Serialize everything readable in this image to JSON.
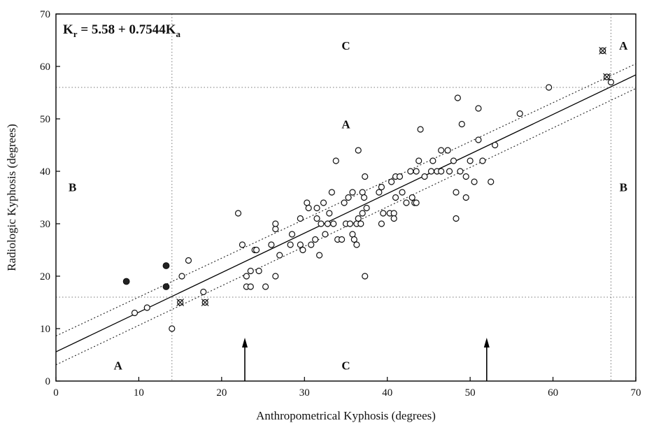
{
  "chart_data": {
    "type": "scatter",
    "xlabel": "Anthropometrical Kyphosis (degrees)",
    "ylabel": "Radiologic Kyphosis (degrees)",
    "xlim": [
      0,
      70
    ],
    "ylim": [
      0,
      70
    ],
    "xticks": [
      0,
      10,
      20,
      30,
      40,
      50,
      60,
      70
    ],
    "yticks": [
      0,
      10,
      20,
      30,
      40,
      50,
      60,
      70
    ],
    "grid": false,
    "equation": {
      "lhs": "K",
      "lhs_sub": "r",
      "rhs": " = 5.58 + 0.7544K",
      "rhs_sub": "a"
    },
    "regression": {
      "intercept": 5.58,
      "slope": 0.7544
    },
    "confidence_band": {
      "upper": [
        [
          0,
          8.6
        ],
        [
          70,
          60.5
        ]
      ],
      "lower": [
        [
          0,
          3.1
        ],
        [
          70,
          55.8
        ]
      ]
    },
    "reference_lines": {
      "vertical": [
        14,
        67
      ],
      "horizontal": [
        16,
        56
      ]
    },
    "arrows_x": [
      22.8,
      52
    ],
    "region_labels": [
      {
        "text": "C",
        "x": 35,
        "y": 64
      },
      {
        "text": "A",
        "x": 68.5,
        "y": 64
      },
      {
        "text": "A",
        "x": 35,
        "y": 49
      },
      {
        "text": "B",
        "x": 2,
        "y": 37
      },
      {
        "text": "B",
        "x": 68.5,
        "y": 37
      },
      {
        "text": "A",
        "x": 7.5,
        "y": 3
      },
      {
        "text": "C",
        "x": 35,
        "y": 3
      }
    ],
    "series": [
      {
        "marker": "open-circle",
        "points": [
          [
            9.5,
            13
          ],
          [
            11,
            14
          ],
          [
            14,
            10
          ],
          [
            15.2,
            20
          ],
          [
            16,
            23
          ],
          [
            17.8,
            17
          ],
          [
            22,
            32
          ],
          [
            22.5,
            26
          ],
          [
            23,
            20
          ],
          [
            23,
            18
          ],
          [
            23.5,
            21
          ],
          [
            23.5,
            18
          ],
          [
            24,
            25
          ],
          [
            24.2,
            25
          ],
          [
            24.5,
            21
          ],
          [
            25.3,
            18
          ],
          [
            26,
            26
          ],
          [
            26.5,
            20
          ],
          [
            26.5,
            29
          ],
          [
            26.5,
            30
          ],
          [
            27,
            24
          ],
          [
            28.3,
            26
          ],
          [
            28.5,
            28
          ],
          [
            29.5,
            26
          ],
          [
            29.5,
            31
          ],
          [
            29.8,
            25
          ],
          [
            30.3,
            34
          ],
          [
            30.5,
            33
          ],
          [
            30.8,
            26
          ],
          [
            31.3,
            27
          ],
          [
            31.5,
            31
          ],
          [
            31.5,
            33
          ],
          [
            31.8,
            24
          ],
          [
            32,
            30
          ],
          [
            32.3,
            34
          ],
          [
            32.5,
            28
          ],
          [
            32.8,
            30
          ],
          [
            33,
            32
          ],
          [
            33.3,
            36
          ],
          [
            33.5,
            30
          ],
          [
            33.8,
            42
          ],
          [
            34,
            27
          ],
          [
            34.5,
            27
          ],
          [
            34.8,
            34
          ],
          [
            35,
            30
          ],
          [
            35.3,
            35
          ],
          [
            35.5,
            30
          ],
          [
            35.8,
            36
          ],
          [
            35.8,
            28
          ],
          [
            36,
            27
          ],
          [
            36.3,
            30
          ],
          [
            36.3,
            26
          ],
          [
            36.5,
            31
          ],
          [
            36.5,
            44
          ],
          [
            36.8,
            30
          ],
          [
            37,
            36
          ],
          [
            37,
            32
          ],
          [
            37.2,
            35
          ],
          [
            37.3,
            20
          ],
          [
            37.3,
            39
          ],
          [
            37.5,
            33
          ],
          [
            39,
            36
          ],
          [
            39.3,
            37
          ],
          [
            39.3,
            30
          ],
          [
            39.5,
            32
          ],
          [
            40.3,
            32
          ],
          [
            40.5,
            38
          ],
          [
            40.8,
            32
          ],
          [
            40.8,
            31
          ],
          [
            41,
            35
          ],
          [
            41,
            39
          ],
          [
            41.5,
            39
          ],
          [
            41.8,
            36
          ],
          [
            42.3,
            34
          ],
          [
            42.8,
            40
          ],
          [
            43,
            35
          ],
          [
            43.3,
            34
          ],
          [
            43.5,
            40
          ],
          [
            43.5,
            34
          ],
          [
            43.8,
            42
          ],
          [
            44,
            48
          ],
          [
            44.5,
            39
          ],
          [
            45.3,
            40
          ],
          [
            45.5,
            42
          ],
          [
            46,
            40
          ],
          [
            46.5,
            40
          ],
          [
            46.5,
            44
          ],
          [
            47.3,
            44
          ],
          [
            47.5,
            40
          ],
          [
            48,
            42
          ],
          [
            48.3,
            31
          ],
          [
            48.3,
            36
          ],
          [
            48.5,
            54
          ],
          [
            48.8,
            40
          ],
          [
            49,
            49
          ],
          [
            49.5,
            39
          ],
          [
            49.5,
            35
          ],
          [
            50,
            42
          ],
          [
            50.5,
            38
          ],
          [
            51,
            46
          ],
          [
            51,
            52
          ],
          [
            51.5,
            42
          ],
          [
            52.5,
            38
          ],
          [
            53,
            45
          ],
          [
            56,
            51
          ],
          [
            59.5,
            56
          ],
          [
            66,
            63
          ],
          [
            66.5,
            58
          ],
          [
            67,
            57
          ]
        ]
      },
      {
        "marker": "filled-circle",
        "points": [
          [
            8.5,
            19
          ],
          [
            13.3,
            22
          ],
          [
            13.3,
            18
          ]
        ]
      },
      {
        "marker": "crossed-circle",
        "points": [
          [
            15,
            15
          ],
          [
            18,
            15
          ],
          [
            66,
            63
          ],
          [
            66.5,
            58
          ]
        ]
      }
    ]
  }
}
